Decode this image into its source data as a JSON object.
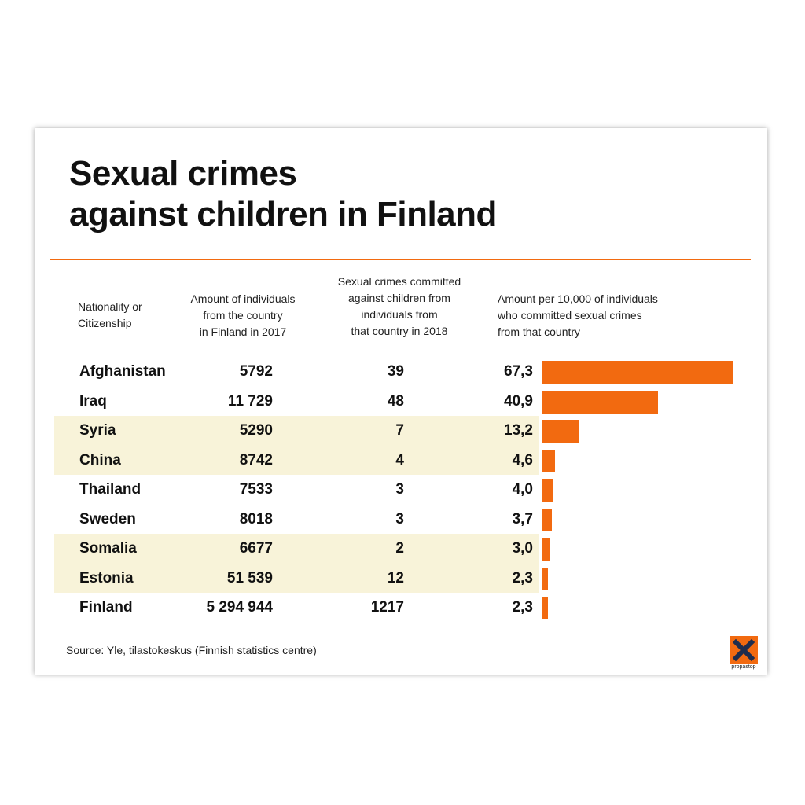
{
  "title_line1": "Sexual crimes",
  "title_line2": "against children in Finland",
  "headers": {
    "nationality": [
      "Nationality or",
      "Citizenship"
    ],
    "individuals": [
      "Amount of individuals",
      "from the country",
      "in Finland in 2017"
    ],
    "crimes": [
      "Sexual crimes committed",
      "against children from",
      "individuals from",
      "that country in 2018"
    ],
    "per10k": [
      "Amount per 10,000 of individuals",
      "who committed sexual crimes",
      "from that country"
    ]
  },
  "source": "Source: Yle, tilastokeskus (Finnish statistics centre)",
  "logo": {
    "text": "propastop",
    "icon": "x-icon"
  },
  "colors": {
    "accent": "#f26a10",
    "highlight": "#f8f3d9",
    "logo_mark": "#1f2d4d"
  },
  "chart_data": {
    "type": "table",
    "columns": [
      "Nationality or Citizenship",
      "Amount of individuals from the country in Finland in 2017",
      "Sexual crimes committed against children from individuals from that country in 2018",
      "Amount per 10,000 of individuals who committed sexual crimes from that country"
    ],
    "rows": [
      {
        "country": "Afghanistan",
        "individuals": "5792",
        "crimes": "39",
        "per10k_label": "67,3",
        "per10k": 67.3,
        "highlight": false
      },
      {
        "country": "Iraq",
        "individuals": "11 729",
        "crimes": "48",
        "per10k_label": "40,9",
        "per10k": 40.9,
        "highlight": false
      },
      {
        "country": "Syria",
        "individuals": "5290",
        "crimes": "7",
        "per10k_label": "13,2",
        "per10k": 13.2,
        "highlight": true
      },
      {
        "country": "China",
        "individuals": "8742",
        "crimes": "4",
        "per10k_label": "4,6",
        "per10k": 4.6,
        "highlight": true
      },
      {
        "country": "Thailand",
        "individuals": "7533",
        "crimes": "3",
        "per10k_label": "4,0",
        "per10k": 4.0,
        "highlight": false
      },
      {
        "country": "Sweden",
        "individuals": "8018",
        "crimes": "3",
        "per10k_label": "3,7",
        "per10k": 3.7,
        "highlight": false
      },
      {
        "country": "Somalia",
        "individuals": "6677",
        "crimes": "2",
        "per10k_label": "3,0",
        "per10k": 3.0,
        "highlight": true
      },
      {
        "country": "Estonia",
        "individuals": "51 539",
        "crimes": "12",
        "per10k_label": "2,3",
        "per10k": 2.3,
        "highlight": true
      },
      {
        "country": "Finland",
        "individuals": "5 294 944",
        "crimes": "1217",
        "per10k_label": "2,3",
        "per10k": 2.3,
        "highlight": false
      }
    ],
    "bar_max": 67.3
  }
}
